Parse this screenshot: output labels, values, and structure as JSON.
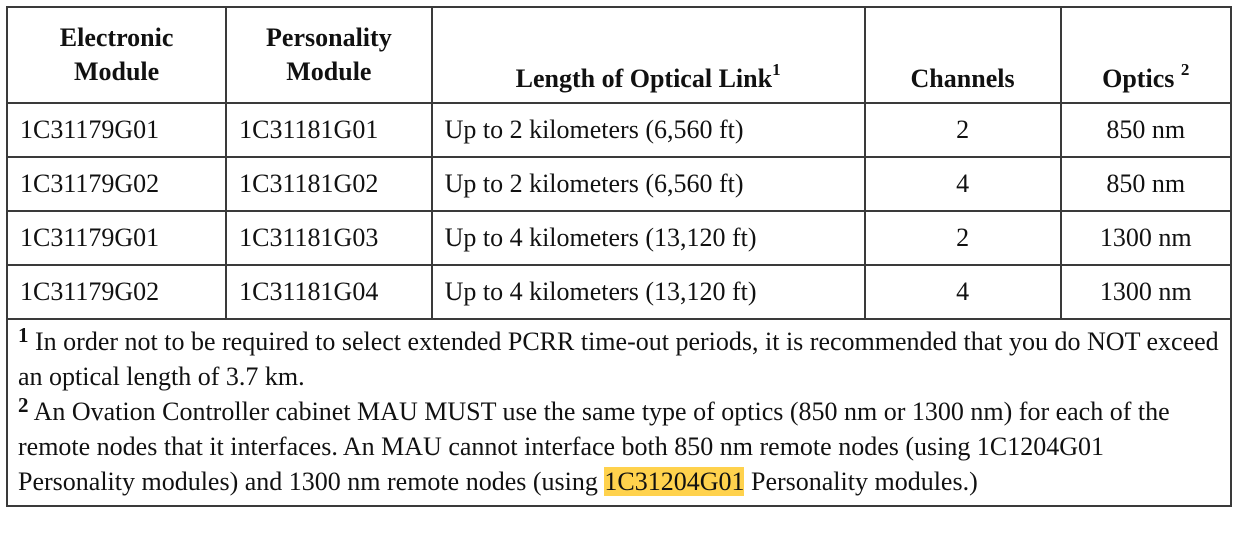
{
  "headers": {
    "electronic_line1": "Electronic",
    "electronic_line2": "Module",
    "personality_line1": "Personality",
    "personality_line2": "Module",
    "length": "Length of Optical Link",
    "length_sup": "1",
    "channels": "Channels",
    "optics": "Optics",
    "optics_sup": "2"
  },
  "rows": [
    {
      "electronic": "1C31179G01",
      "personality": "1C31181G01",
      "length": "Up to 2 kilometers (6,560 ft)",
      "channels": "2",
      "optics": "850 nm"
    },
    {
      "electronic": "1C31179G02",
      "personality": "1C31181G02",
      "length": "Up to 2 kilometers (6,560 ft)",
      "channels": "4",
      "optics": "850 nm"
    },
    {
      "electronic": "1C31179G01",
      "personality": "1C31181G03",
      "length": "Up to 4 kilometers (13,120 ft)",
      "channels": "2",
      "optics": "1300 nm"
    },
    {
      "electronic": "1C31179G02",
      "personality": "1C31181G04",
      "length": "Up to 4 kilometers (13,120 ft)",
      "channels": "4",
      "optics": "1300 nm"
    }
  ],
  "notes": {
    "note1_num": "1",
    "note1_text": "In order not to be required to select extended PCRR time-out periods, it is recommended that you do NOT exceed an optical length of 3.7 km.",
    "note2_num": "2",
    "note2_text_before": "An Ovation Controller cabinet MAU MUST use the same type of optics (850 nm or 1300 nm) for each of the remote nodes that it interfaces. An MAU cannot interface both 850 nm remote nodes (using 1C1204G01 Personality modules) and 1300 nm remote nodes (using ",
    "note2_highlight": "1C31204G01",
    "note2_text_after": " Personality modules.)"
  },
  "colors": {
    "highlight": "#ffd24d",
    "border": "#3a3a3a"
  }
}
